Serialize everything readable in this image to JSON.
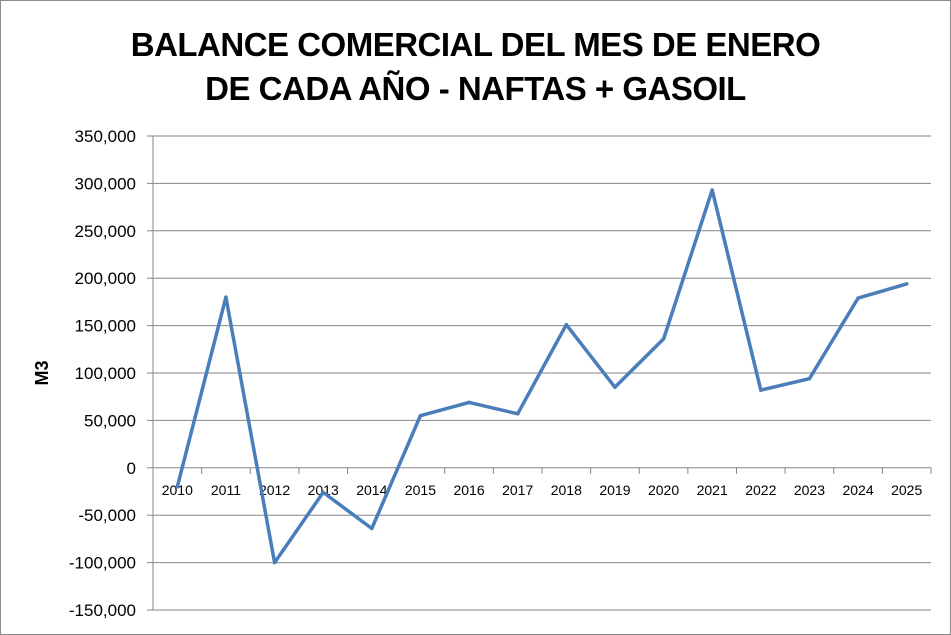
{
  "chart_data": {
    "type": "line",
    "title_lines": [
      "BALANCE COMERCIAL DEL MES DE ENERO",
      "DE CADA AÑO - NAFTAS + GASOIL"
    ],
    "xlabel": "",
    "ylabel": "M3",
    "ylim": [
      -150000,
      350000
    ],
    "ytick_step": 50000,
    "yticks": [
      "350,000",
      "300,000",
      "250,000",
      "200,000",
      "150,000",
      "100,000",
      "50,000",
      "0",
      "-50,000",
      "-100,000",
      "-150,000"
    ],
    "grid": true,
    "legend": "none",
    "categories": [
      "2010",
      "2011",
      "2012",
      "2013",
      "2014",
      "2015",
      "2016",
      "2017",
      "2018",
      "2019",
      "2020",
      "2021",
      "2022",
      "2023",
      "2024",
      "2025"
    ],
    "series": [
      {
        "values": [
          -20000,
          180000,
          -100000,
          -26000,
          -64000,
          55000,
          69000,
          57000,
          151000,
          85000,
          136000,
          293000,
          82000,
          94000,
          179000,
          194000
        ],
        "color": "#4a7ebb"
      }
    ]
  }
}
